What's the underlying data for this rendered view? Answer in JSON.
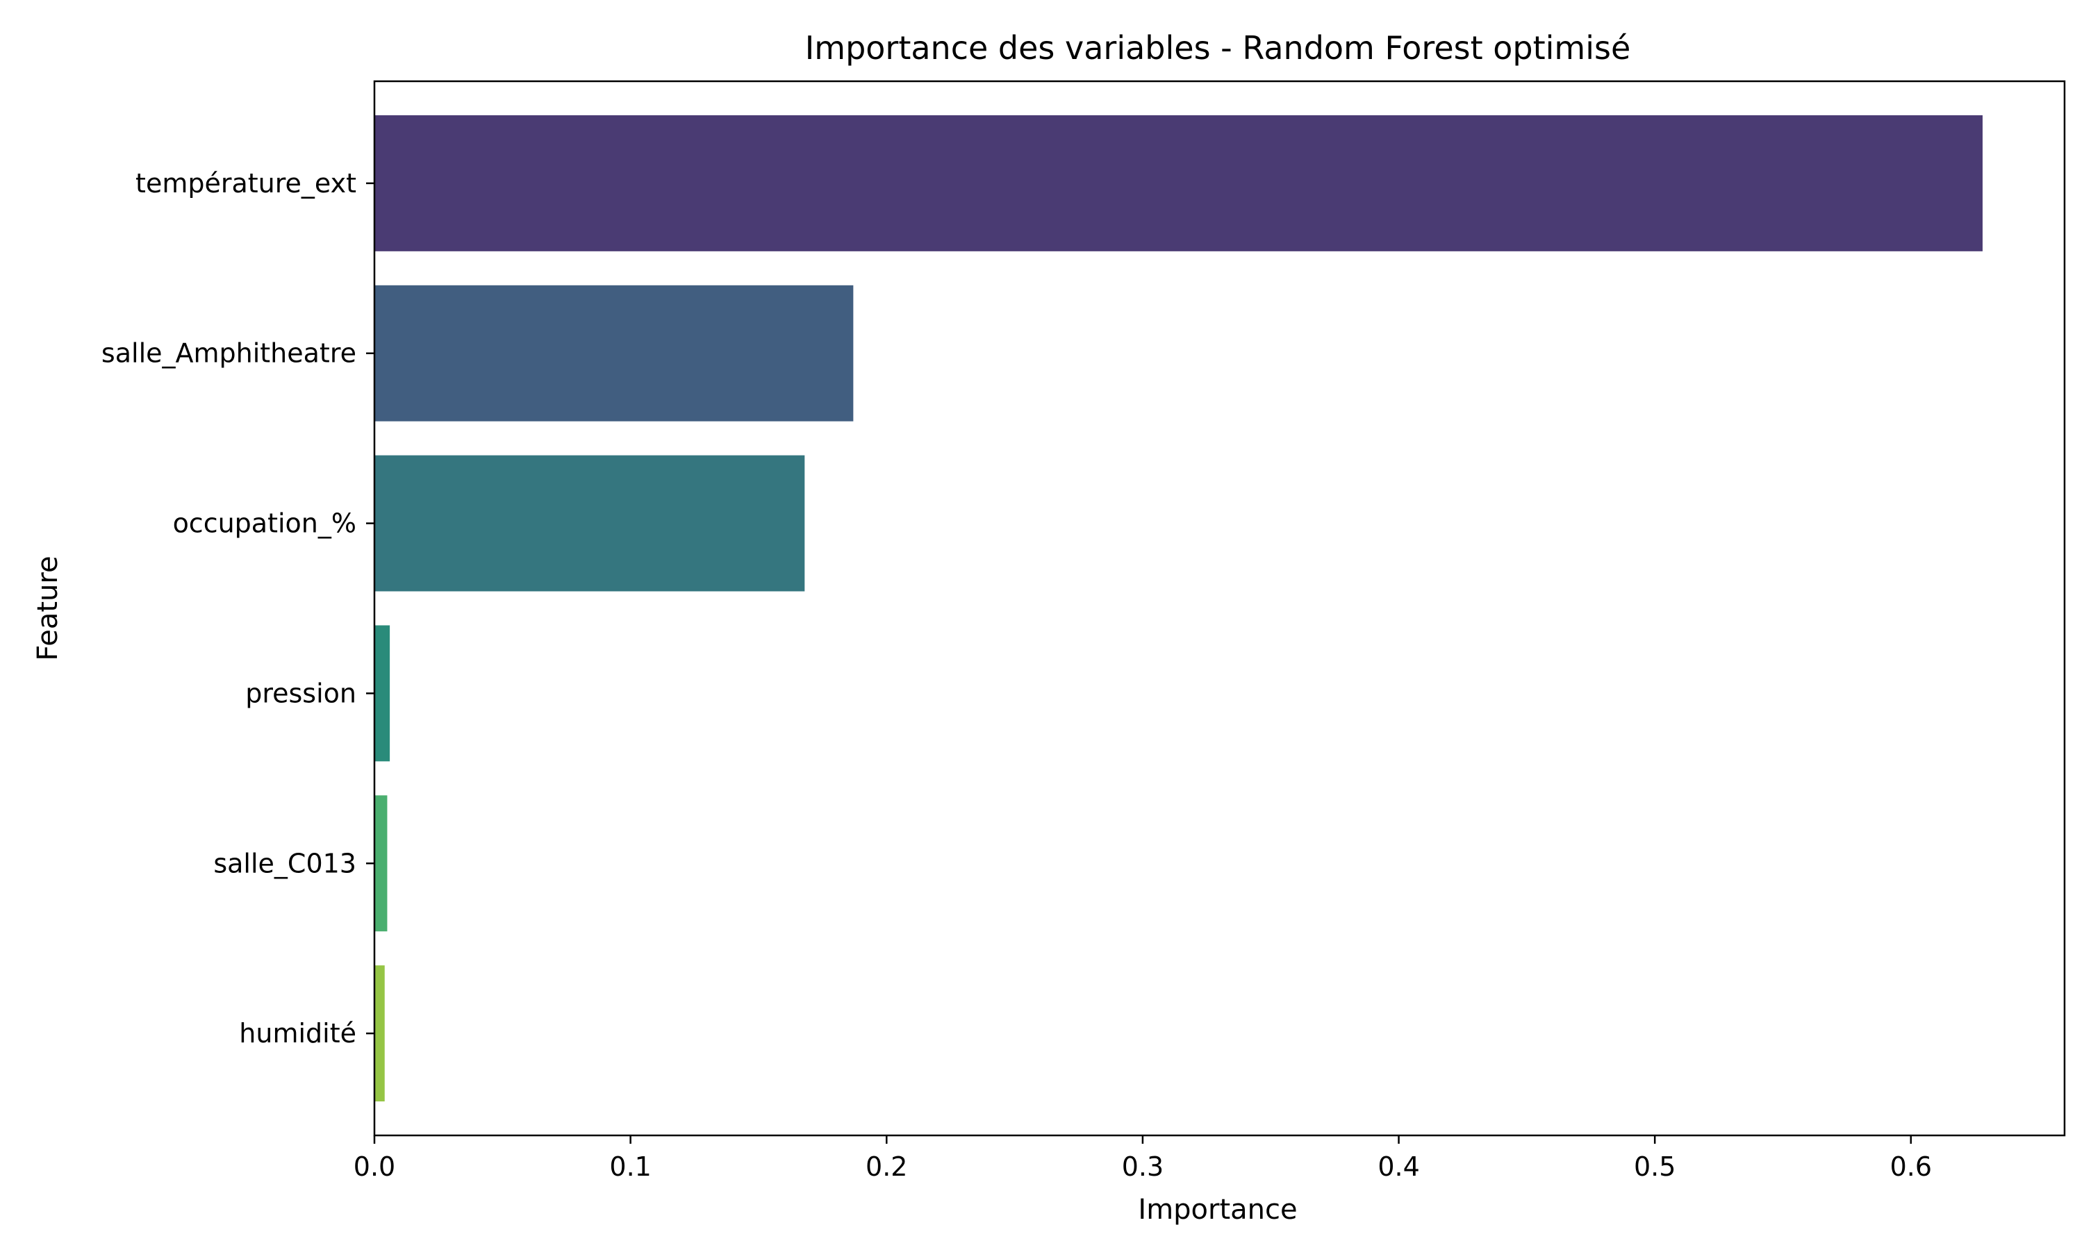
{
  "chart_data": {
    "type": "bar",
    "orientation": "horizontal",
    "title": "Importance des variables - Random Forest optimisé",
    "xlabel": "Importance",
    "ylabel": "Feature",
    "categories": [
      "température_ext",
      "salle_Amphitheatre",
      "occupation_%",
      "pression",
      "salle_C013",
      "humidité"
    ],
    "values": [
      0.628,
      0.187,
      0.168,
      0.006,
      0.005,
      0.004
    ],
    "colors": [
      "#4a3b73",
      "#415e80",
      "#35767f",
      "#2a8b7a",
      "#4aaf6f",
      "#95c545"
    ],
    "xlim": [
      0.0,
      0.66
    ],
    "xticks": [
      0.0,
      0.1,
      0.2,
      0.3,
      0.4,
      0.5,
      0.6
    ],
    "xtick_labels": [
      "0.0",
      "0.1",
      "0.2",
      "0.3",
      "0.4",
      "0.5",
      "0.6"
    ],
    "grid": false,
    "legend": "none"
  }
}
